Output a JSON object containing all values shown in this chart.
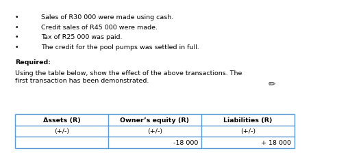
{
  "bullet_points": [
    "Sales of R30 000 were made using cash.",
    "Credit sales of R45 000 were made.",
    "Tax of R25 000 was paid.",
    "The credit for the pool pumps was settled in full."
  ],
  "required_label": "Required:",
  "instruction_line1": "Using the table below, show the effect of the above transactions. The",
  "instruction_line2": "first transaction has been demonstrated.",
  "table_headers": [
    "Assets (R)",
    "Owner’s equity (R)",
    "Liabilities (R)"
  ],
  "table_subheaders": [
    "(+/-)",
    "(+/-)",
    "(+/-)"
  ],
  "table_row": [
    "",
    "-18 000",
    "+ 18 000"
  ],
  "bg_color": "#ffffff",
  "text_color": "#000000",
  "table_border_color": "#5b9bd5",
  "font_size_body": 6.8,
  "font_size_table_header": 6.8,
  "font_size_table_data": 6.8
}
